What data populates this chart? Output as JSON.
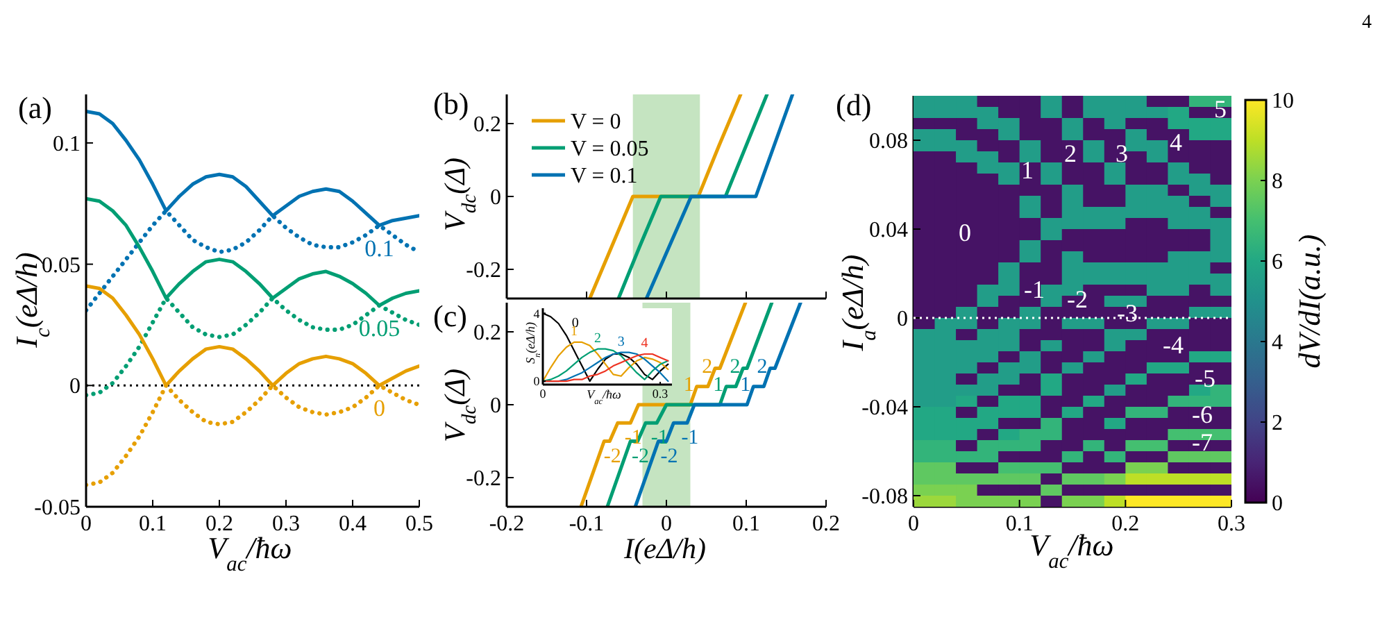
{
  "chart_data": [
    {
      "type": "line",
      "title": "(a)",
      "xlabel": "V$_{ac}$/ħω",
      "ylabel": "I$_{c}$(eΔ/h)",
      "x": [
        0,
        0.02,
        0.04,
        0.06,
        0.08,
        0.1,
        0.12,
        0.14,
        0.16,
        0.18,
        0.2,
        0.22,
        0.24,
        0.26,
        0.28,
        0.3,
        0.32,
        0.34,
        0.36,
        0.38,
        0.4,
        0.42,
        0.44,
        0.46,
        0.48,
        0.5
      ],
      "xlim": [
        0,
        0.5
      ],
      "ylim": [
        -0.05,
        0.12
      ],
      "xticks": [
        0,
        0.1,
        0.2,
        0.3,
        0.4,
        0.5
      ],
      "yticks": [
        -0.05,
        0,
        0.05,
        0.1
      ],
      "ref_lines": [
        {
          "axis": "y",
          "value": 0,
          "color": "#000000",
          "line_style": "dotted"
        }
      ],
      "series": [
        {
          "name": "0.1",
          "color": "#0072b2",
          "values": [
            0.113,
            0.112,
            0.108,
            0.101,
            0.093,
            0.083,
            0.072,
            0.078,
            0.083,
            0.086,
            0.087,
            0.086,
            0.082,
            0.076,
            0.07,
            0.074,
            0.078,
            0.08,
            0.081,
            0.08,
            0.076,
            0.071,
            0.066,
            0.068,
            0.069,
            0.07
          ]
        },
        {
          "color": "#0072b2",
          "line_style": "dotted",
          "values": [
            0.031,
            0.038,
            0.045,
            0.052,
            0.059,
            0.066,
            0.072,
            0.066,
            0.06,
            0.057,
            0.055,
            0.056,
            0.059,
            0.064,
            0.07,
            0.065,
            0.061,
            0.058,
            0.057,
            0.057,
            0.059,
            0.062,
            0.066,
            0.062,
            0.058,
            0.055
          ]
        },
        {
          "name": "0.05",
          "color": "#009e73",
          "values": [
            0.077,
            0.076,
            0.072,
            0.066,
            0.057,
            0.047,
            0.036,
            0.042,
            0.047,
            0.051,
            0.052,
            0.051,
            0.047,
            0.042,
            0.036,
            0.04,
            0.044,
            0.046,
            0.047,
            0.045,
            0.042,
            0.038,
            0.033,
            0.036,
            0.038,
            0.039
          ]
        },
        {
          "color": "#009e73",
          "line_style": "dotted",
          "values": [
            -0.004,
            -0.003,
            0.001,
            0.008,
            0.016,
            0.026,
            0.036,
            0.03,
            0.024,
            0.021,
            0.02,
            0.021,
            0.025,
            0.03,
            0.036,
            0.031,
            0.027,
            0.024,
            0.023,
            0.023,
            0.025,
            0.029,
            0.033,
            0.03,
            0.027,
            0.025
          ]
        },
        {
          "name": "0",
          "color": "#e69f00",
          "values": [
            0.041,
            0.04,
            0.036,
            0.029,
            0.021,
            0.011,
            0,
            0.006,
            0.011,
            0.015,
            0.016,
            0.015,
            0.011,
            0.006,
            0,
            0.005,
            0.009,
            0.011,
            0.012,
            0.011,
            0.009,
            0.005,
            0,
            0.003,
            0.006,
            0.008
          ]
        },
        {
          "color": "#e69f00",
          "line_style": "dotted",
          "values": [
            -0.041,
            -0.04,
            -0.036,
            -0.029,
            -0.021,
            -0.011,
            0,
            -0.006,
            -0.011,
            -0.015,
            -0.016,
            -0.015,
            -0.011,
            -0.006,
            0,
            -0.005,
            -0.009,
            -0.011,
            -0.012,
            -0.011,
            -0.009,
            -0.005,
            0,
            -0.003,
            -0.006,
            -0.008
          ]
        }
      ]
    },
    {
      "type": "line",
      "title": "(b)",
      "ylabel": "V$_{dc}$(Δ)",
      "xlim": [
        -0.2,
        0.2
      ],
      "ylim": [
        -0.28,
        0.28
      ],
      "xticks": [
        -0.2,
        -0.1,
        0,
        0.1,
        0.2
      ],
      "yticks": [
        -0.2,
        0,
        0.2
      ],
      "tick_labels": "y",
      "legend": "top left",
      "bands": [
        {
          "axis": "x",
          "from": -0.042,
          "to": 0.042,
          "color": "#c5e4c1"
        }
      ],
      "series": [
        {
          "name": "V = 0",
          "color": "#e69f00",
          "x": [
            -0.096,
            -0.069,
            -0.042,
            0.04,
            0.066,
            0.093
          ],
          "values": [
            -0.28,
            -0.14,
            0,
            0,
            0.14,
            0.28
          ]
        },
        {
          "name": "V = 0.05",
          "color": "#009e73",
          "x": [
            -0.06,
            -0.034,
            -0.007,
            0.074,
            0.1,
            0.126
          ],
          "values": [
            -0.28,
            -0.14,
            0,
            0,
            0.14,
            0.28
          ]
        },
        {
          "name": "V = 0.1",
          "color": "#0072b2",
          "x": [
            -0.025,
            0.003,
            0.031,
            0.112,
            0.135,
            0.158
          ],
          "values": [
            -0.28,
            -0.14,
            0,
            0,
            0.14,
            0.28
          ]
        }
      ]
    },
    {
      "type": "line",
      "title": "(c)",
      "xlabel": "I(eΔ/h)",
      "ylabel": "V$_{dc}$(Δ)",
      "xlim": [
        -0.2,
        0.2
      ],
      "ylim": [
        -0.28,
        0.28
      ],
      "xticks": [
        -0.2,
        -0.1,
        0,
        0.1,
        0.2
      ],
      "yticks": [
        -0.2,
        0,
        0.2
      ],
      "bands": [
        {
          "axis": "x",
          "from": -0.03,
          "to": 0.03,
          "color": "#c5e4c1"
        }
      ],
      "series": [
        {
          "color": "#e69f00",
          "x": [
            -0.107,
            -0.078,
            -0.071,
            -0.061,
            -0.045,
            -0.035,
            0.03,
            0.038,
            0.052,
            0.061,
            0.067,
            0.099
          ],
          "values": [
            -0.28,
            -0.1,
            -0.1,
            -0.05,
            -0.05,
            0,
            0,
            0.05,
            0.05,
            0.1,
            0.1,
            0.28
          ]
        },
        {
          "color": "#009e73",
          "x": [
            -0.074,
            -0.045,
            -0.036,
            -0.026,
            -0.012,
            0.0,
            0.067,
            0.075,
            0.087,
            0.096,
            0.101,
            0.132
          ],
          "values": [
            -0.28,
            -0.1,
            -0.1,
            -0.05,
            -0.05,
            0,
            0,
            0.05,
            0.05,
            0.1,
            0.1,
            0.28
          ]
        },
        {
          "color": "#0072b2",
          "x": [
            -0.039,
            -0.01,
            0.0,
            0.009,
            0.026,
            0.035,
            0.101,
            0.109,
            0.122,
            0.13,
            0.136,
            0.168
          ],
          "values": [
            -0.28,
            -0.1,
            -0.1,
            -0.05,
            -0.05,
            0,
            0,
            0.05,
            0.05,
            0.1,
            0.1,
            0.28
          ]
        }
      ],
      "annotations": [
        {
          "text": "-2",
          "x": -0.071,
          "y": -0.1
        },
        {
          "text": "-1",
          "x": -0.045,
          "y": -0.05
        },
        {
          "text": "1",
          "x": 0.038,
          "y": 0.05
        },
        {
          "text": "2",
          "x": 0.061,
          "y": 0.1
        },
        {
          "text": "-2",
          "x": -0.036,
          "y": -0.1
        },
        {
          "text": "-1",
          "x": -0.012,
          "y": -0.05
        },
        {
          "text": "1",
          "x": 0.075,
          "y": 0.05
        },
        {
          "text": "2",
          "x": 0.096,
          "y": 0.1
        },
        {
          "text": "-2",
          "x": 0.0,
          "y": -0.1
        },
        {
          "text": "-1",
          "x": 0.026,
          "y": -0.05
        },
        {
          "text": "1",
          "x": 0.109,
          "y": 0.05
        },
        {
          "text": "2",
          "x": 0.13,
          "y": 0.1
        }
      ]
    },
    {
      "type": "line",
      "xlabel": "V$_{ac}$/ħω",
      "ylabel": "S$_{n}$(eΔ/h)",
      "x": [
        0,
        0.02,
        0.04,
        0.06,
        0.08,
        0.1,
        0.12,
        0.14,
        0.16,
        0.18,
        0.2,
        0.22,
        0.24,
        0.26,
        0.28,
        0.3,
        0.32
      ],
      "xlim": [
        0,
        0.33
      ],
      "ylim": [
        -0.2,
        4.3
      ],
      "xticks": [
        0,
        0.3
      ],
      "yticks": [
        0,
        4
      ],
      "series": [
        {
          "name": "0",
          "color": "#000000",
          "values": [
            4.0,
            3.8,
            3.4,
            2.7,
            1.8,
            0.9,
            0.0,
            0.7,
            1.3,
            1.6,
            1.6,
            1.4,
            1.0,
            0.4,
            0.1,
            0.6,
            1.0
          ]
        },
        {
          "name": "1",
          "color": "#e69f00",
          "values": [
            0,
            0.8,
            1.5,
            2.0,
            2.3,
            2.3,
            2.1,
            1.6,
            1.0,
            0.4,
            0.3,
            0.8,
            1.2,
            1.4,
            1.3,
            1.1,
            0.7
          ]
        },
        {
          "name": "2",
          "color": "#009e73",
          "values": [
            0,
            0.1,
            0.3,
            0.6,
            1.0,
            1.4,
            1.7,
            1.9,
            1.9,
            1.8,
            1.5,
            1.0,
            0.5,
            0.1,
            0.6,
            1.0,
            1.2
          ]
        },
        {
          "name": "3",
          "color": "#0072b2",
          "values": [
            0,
            0,
            0,
            0.1,
            0.3,
            0.5,
            0.8,
            1.1,
            1.4,
            1.6,
            1.7,
            1.7,
            1.6,
            1.3,
            0.9,
            0.5,
            0.0
          ]
        },
        {
          "name": "4",
          "color": "#ee3322",
          "values": [
            0,
            0,
            0,
            0,
            0.1,
            0.1,
            0.3,
            0.4,
            0.6,
            0.9,
            1.1,
            1.3,
            1.5,
            1.6,
            1.6,
            1.4,
            1.2
          ]
        }
      ]
    },
    {
      "type": "heatmap",
      "title": "(d)",
      "xlabel": "V$_{ac}$/ħω",
      "ylabel": "I$_{a}$(eΔ/h)",
      "clabel": "dV/dI(a.u.)",
      "xlim": [
        0,
        0.3
      ],
      "ylim": [
        -0.085,
        0.1
      ],
      "xticks": [
        0,
        0.1,
        0.2,
        0.3
      ],
      "yticks": [
        -0.08,
        -0.04,
        0,
        0.04,
        0.08
      ],
      "clim": [
        0,
        10
      ],
      "cticks": [
        0,
        2,
        4,
        6,
        8,
        10
      ],
      "ref_lines": [
        {
          "axis": "y",
          "value": 0,
          "color": "#ffffff",
          "line_style": "dotted"
        }
      ],
      "cells": [
        [
          5.5,
          5.5,
          5.5,
          0.5,
          0.5,
          0.5,
          5.5,
          0.5,
          5.5,
          5.5,
          5.5,
          0.5,
          0.5,
          6.5,
          6.5
        ],
        [
          5.5,
          5.5,
          5.5,
          5.5,
          0.5,
          0.5,
          5.5,
          0.5,
          5.5,
          5.5,
          5.5,
          5.5,
          6,
          0.5,
          0.5
        ],
        [
          0.5,
          0.5,
          0.5,
          5.5,
          5.5,
          0.5,
          0.5,
          5.5,
          0.5,
          5.5,
          0.5,
          0.5,
          6,
          6,
          6
        ],
        [
          5.5,
          5.5,
          0.5,
          0.5,
          5.5,
          0.5,
          0.5,
          5.5,
          0.5,
          0.5,
          5.5,
          0.5,
          0.5,
          6,
          6
        ],
        [
          5.5,
          5.5,
          5.5,
          0.5,
          0.5,
          5.5,
          0.5,
          0.5,
          5.5,
          0.5,
          5.5,
          5.5,
          0.5,
          0.5,
          0.5
        ],
        [
          0.5,
          0.5,
          5.5,
          5.5,
          0.5,
          5.5,
          0.5,
          0.5,
          5.5,
          0.5,
          0.5,
          5.5,
          0.5,
          0.5,
          0.5
        ],
        [
          0.5,
          0.5,
          0.5,
          5.5,
          5.5,
          0.5,
          5.5,
          0.5,
          0.5,
          5.5,
          0.5,
          0.5,
          5.5,
          0.5,
          0.5
        ],
        [
          0.5,
          0.5,
          0.5,
          0.5,
          5.5,
          0.5,
          5.5,
          0.5,
          0.5,
          5.5,
          0.5,
          0.5,
          5.5,
          5.5,
          0.5
        ],
        [
          0.5,
          0.5,
          0.5,
          0.5,
          0.5,
          0.5,
          0.5,
          5.5,
          0.5,
          0.5,
          5.5,
          5.5,
          0.5,
          5.5,
          5.5
        ],
        [
          0.5,
          0.5,
          0.5,
          0.5,
          0.5,
          5.5,
          0.5,
          5.5,
          0.5,
          0.5,
          5.5,
          5.5,
          5.5,
          0.5,
          5.5
        ],
        [
          0.5,
          0.5,
          0.5,
          0.5,
          0.5,
          5.5,
          0.5,
          5.5,
          5.5,
          5.5,
          5.5,
          5.5,
          5.5,
          5.5,
          0.5
        ],
        [
          0.5,
          0.5,
          0.5,
          0.5,
          0.5,
          0.5,
          5.5,
          5.5,
          5.5,
          5.5,
          0.5,
          0.5,
          5.5,
          5.5,
          5.5
        ],
        [
          0.5,
          0.5,
          0.5,
          0.5,
          0.5,
          0.5,
          5.5,
          0.5,
          0.5,
          0.5,
          0.5,
          0.5,
          0.5,
          0.5,
          5.5
        ],
        [
          0.5,
          0.5,
          0.5,
          0.5,
          0.5,
          5.5,
          0.5,
          0.5,
          0.5,
          0.5,
          0.5,
          0.5,
          0.5,
          0.5,
          5.5
        ],
        [
          0.5,
          0.5,
          0.5,
          0.5,
          0.5,
          5.5,
          0.5,
          5.5,
          0.5,
          0.5,
          0.5,
          0.5,
          5.5,
          5.5,
          5.5
        ],
        [
          0.5,
          0.5,
          0.5,
          0.5,
          5.5,
          0.5,
          0.5,
          5.5,
          5.5,
          5.5,
          5.5,
          5.5,
          5.5,
          5.5,
          0.5
        ],
        [
          0.5,
          0.5,
          0.5,
          0.5,
          5.5,
          0.5,
          0.5,
          5.5,
          5.5,
          5.5,
          5.5,
          5.5,
          5.5,
          5.5,
          5.5
        ],
        [
          0.5,
          0.5,
          0.5,
          5.5,
          5.5,
          0.5,
          5.5,
          5.5,
          0.5,
          0.5,
          0.5,
          5.5,
          5.5,
          0.5,
          5.5
        ],
        [
          0.5,
          0.5,
          0.5,
          5.5,
          0.5,
          0.5,
          5.5,
          0.5,
          0.5,
          5.5,
          5.5,
          0.5,
          0.5,
          0.5,
          0.5
        ],
        [
          0.5,
          0.5,
          5.5,
          0.5,
          0.5,
          5.5,
          0.5,
          0.5,
          0.5,
          0.5,
          0.5,
          0.5,
          0.5,
          5.5,
          5.5
        ],
        [
          0.5,
          5.5,
          5.5,
          0.5,
          5.5,
          5.5,
          0.5,
          5.5,
          5.5,
          0.5,
          0.5,
          5.5,
          5.5,
          0.5,
          0.5
        ],
        [
          5.5,
          5.5,
          0.5,
          5.5,
          5.5,
          0.5,
          0.5,
          0.5,
          0.5,
          5.5,
          5.5,
          0.5,
          0.5,
          0.5,
          0.5
        ],
        [
          5.5,
          5.5,
          5.5,
          5.5,
          5.5,
          0.5,
          5.5,
          0.5,
          0.5,
          5.5,
          0.5,
          0.5,
          0.5,
          0.5,
          0.5
        ],
        [
          5.5,
          5.5,
          5.5,
          5.5,
          0.5,
          5.5,
          0.5,
          0.5,
          5.5,
          0.5,
          0.5,
          0.5,
          0.5,
          6,
          6
        ],
        [
          5.5,
          5.5,
          5.5,
          0.5,
          5.5,
          5.5,
          0.5,
          5.5,
          0.5,
          0.5,
          0.5,
          6,
          6,
          0.5,
          0.5
        ],
        [
          5.5,
          5.5,
          0.5,
          5.5,
          5.5,
          0.5,
          6,
          0.5,
          0.5,
          0.5,
          6,
          0.5,
          0.5,
          0.5,
          0.5
        ],
        [
          5.5,
          5.5,
          5.5,
          5.5,
          0.5,
          0.5,
          6,
          0.5,
          0.5,
          5.5,
          0.5,
          0.5,
          0.5,
          6,
          6.5
        ],
        [
          5.5,
          5.5,
          6,
          0.5,
          6,
          6,
          0.5,
          0.5,
          6,
          0.5,
          0.5,
          0.5,
          6.5,
          6.5,
          6.5
        ],
        [
          6,
          6,
          0.5,
          6,
          6,
          6,
          0.5,
          6,
          0.5,
          0.5,
          6.5,
          6.5,
          0.5,
          0.5,
          0.5
        ],
        [
          6,
          6,
          6,
          6,
          0.5,
          0.5,
          6.5,
          0.5,
          0.5,
          6,
          0.5,
          0.5,
          0.5,
          0.5,
          0.5
        ],
        [
          6,
          6,
          6,
          0.5,
          6,
          6.5,
          6.5,
          0.5,
          0.5,
          0.5,
          0.5,
          0.5,
          7,
          7,
          7
        ],
        [
          6.5,
          6.5,
          0.5,
          6.5,
          6.5,
          6.5,
          0.5,
          0.5,
          6.5,
          0.5,
          7,
          7,
          0.5,
          0.5,
          0.5
        ],
        [
          6.5,
          6.5,
          6.5,
          6.5,
          0.5,
          0.5,
          0.5,
          6.5,
          0.5,
          6.5,
          0.5,
          0.5,
          7.5,
          7.5,
          7.5
        ],
        [
          7.5,
          7.5,
          0.5,
          0.5,
          7,
          7,
          7,
          0.5,
          0.5,
          0.5,
          8,
          8,
          0.5,
          0.5,
          0.5
        ],
        [
          7.5,
          7.5,
          7.5,
          7.5,
          7.5,
          7.5,
          0.5,
          7.5,
          7.5,
          8,
          9,
          9,
          9,
          9,
          9
        ],
        [
          8,
          8,
          8,
          0.5,
          0.5,
          0.5,
          7.5,
          0.5,
          0.5,
          0.5,
          0.5,
          0.5,
          0.5,
          0.5,
          0.5
        ],
        [
          8.5,
          8.5,
          8,
          8,
          8,
          8,
          0.5,
          8,
          8,
          9,
          10,
          10,
          10,
          10,
          10
        ]
      ],
      "annotations": [
        "0",
        "1",
        "2",
        "3",
        "4",
        "5",
        "-1",
        "-2",
        "-3",
        "-4",
        "-5",
        "-6",
        "-7",
        "4"
      ]
    }
  ]
}
